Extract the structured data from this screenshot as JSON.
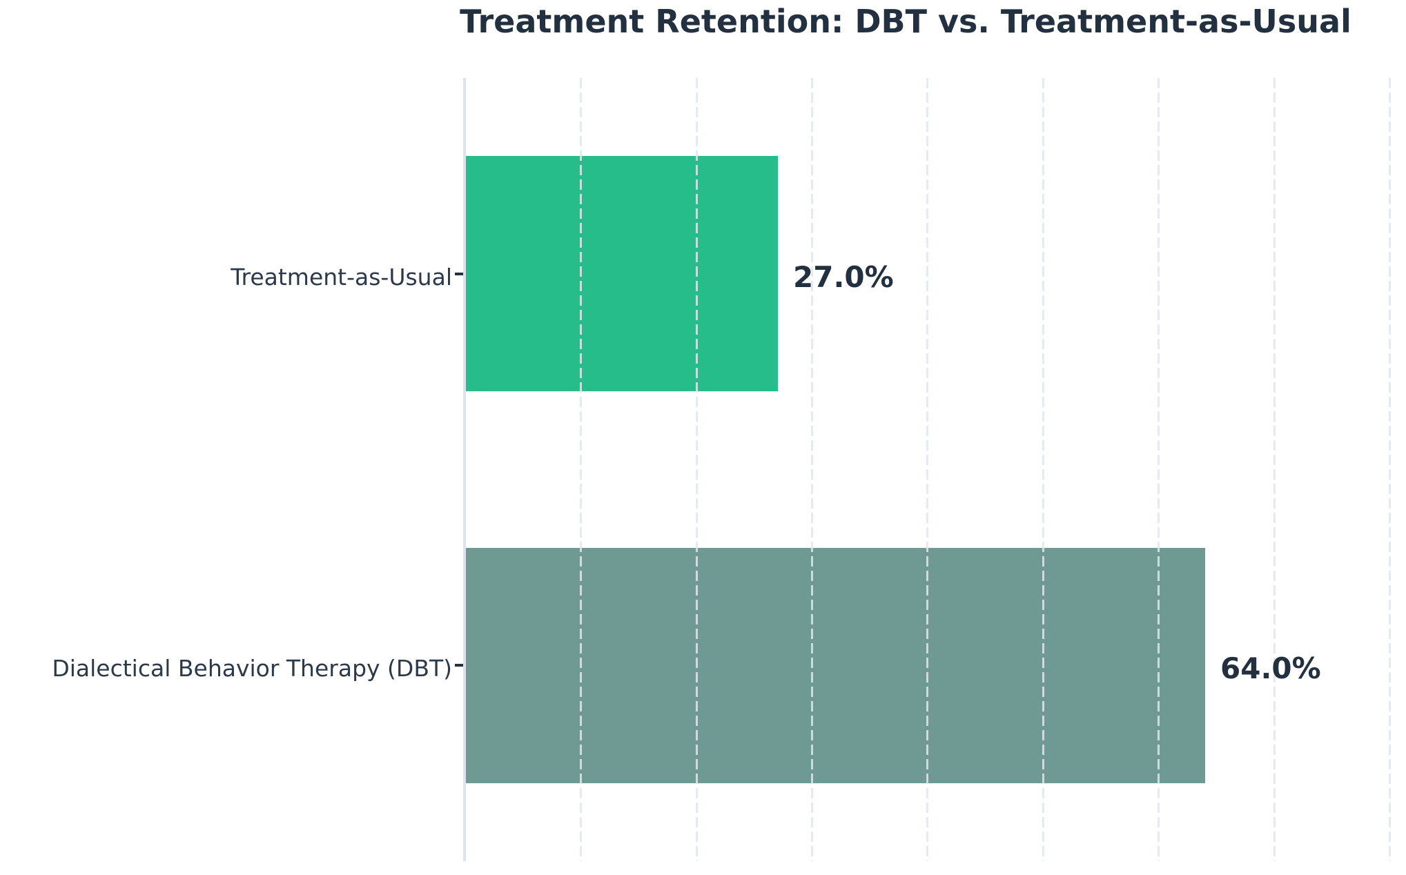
{
  "title": "Treatment Retention: DBT vs. Treatment-as-Usual",
  "chart_data": {
    "type": "bar",
    "orientation": "horizontal",
    "title": "Treatment Retention: DBT vs. Treatment-as-Usual",
    "categories": [
      "Treatment-as-Usual",
      "Dialectical Behavior Therapy (DBT)"
    ],
    "values": [
      27.0,
      64.0
    ],
    "value_labels": [
      "27.0%",
      "64.0%"
    ],
    "unit": "percent",
    "xlabel": "",
    "ylabel": "",
    "xlim": [
      0,
      81.5
    ],
    "gridline_step": 10,
    "gridlines_at": [
      10,
      20,
      30,
      40,
      50,
      60,
      70,
      80
    ],
    "grid": "vertical-dashed",
    "legend": "none",
    "x_tick_labels": "none",
    "bar_colors": [
      "#26bd8b",
      "#6f9a94"
    ],
    "colors": {
      "title_text": "#22303f",
      "category_label_text": "#2b394a",
      "value_label_text": "#22303f",
      "axis_line": "#dde3ec",
      "tick_mark": "#24313f",
      "gridline": "rgba(223,231,238,0.85)",
      "background": "#ffffff"
    }
  }
}
